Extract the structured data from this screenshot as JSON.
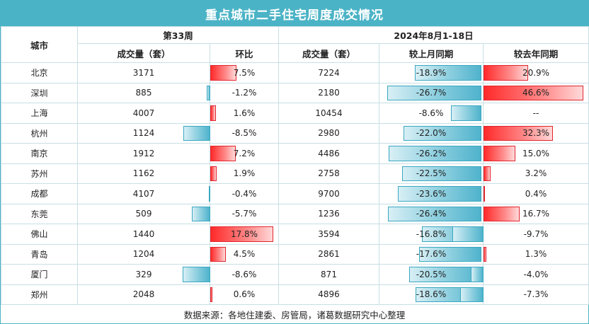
{
  "title": "重点城市二手住宅周度成交情况",
  "header": {
    "city": "城市",
    "week_group": "第33周",
    "period_group": "2024年8月1-18日",
    "volume": "成交量（套）",
    "wow": "环比",
    "period_volume": "成交量（套）",
    "mom": "较上月同期",
    "yoy": "较去年同期"
  },
  "rows": [
    {
      "city": "北京",
      "week_volume": "3171",
      "wow": "7.5%",
      "wow_v": 7.5,
      "period_volume": "7224",
      "mom": "-18.9%",
      "mom_v": -18.9,
      "yoy": "20.9%",
      "yoy_v": 20.9
    },
    {
      "city": "深圳",
      "week_volume": "885",
      "wow": "-1.2%",
      "wow_v": -1.2,
      "period_volume": "2180",
      "mom": "-26.7%",
      "mom_v": -26.7,
      "yoy": "46.6%",
      "yoy_v": 46.6
    },
    {
      "city": "上海",
      "week_volume": "4007",
      "wow": "1.6%",
      "wow_v": 1.6,
      "period_volume": "10454",
      "mom": "-8.6%",
      "mom_v": -8.6,
      "yoy": "--",
      "yoy_v": 0
    },
    {
      "city": "杭州",
      "week_volume": "1124",
      "wow": "-8.5%",
      "wow_v": -8.5,
      "period_volume": "2980",
      "mom": "-22.0%",
      "mom_v": -22.0,
      "yoy": "32.3%",
      "yoy_v": 32.3
    },
    {
      "city": "南京",
      "week_volume": "1912",
      "wow": "7.2%",
      "wow_v": 7.2,
      "period_volume": "4486",
      "mom": "-26.2%",
      "mom_v": -26.2,
      "yoy": "15.0%",
      "yoy_v": 15.0
    },
    {
      "city": "苏州",
      "week_volume": "1162",
      "wow": "1.9%",
      "wow_v": 1.9,
      "period_volume": "2758",
      "mom": "-22.5%",
      "mom_v": -22.5,
      "yoy": "3.2%",
      "yoy_v": 3.2
    },
    {
      "city": "成都",
      "week_volume": "4107",
      "wow": "-0.4%",
      "wow_v": -0.4,
      "period_volume": "9700",
      "mom": "-23.6%",
      "mom_v": -23.6,
      "yoy": "0.4%",
      "yoy_v": 0.4
    },
    {
      "city": "东莞",
      "week_volume": "509",
      "wow": "-5.7%",
      "wow_v": -5.7,
      "period_volume": "1236",
      "mom": "-26.4%",
      "mom_v": -26.4,
      "yoy": "16.7%",
      "yoy_v": 16.7
    },
    {
      "city": "佛山",
      "week_volume": "1440",
      "wow": "17.8%",
      "wow_v": 17.8,
      "period_volume": "3594",
      "mom": "-16.8%",
      "mom_v": -16.8,
      "yoy": "-9.7%",
      "yoy_v": -9.7
    },
    {
      "city": "青岛",
      "week_volume": "1204",
      "wow": "4.5%",
      "wow_v": 4.5,
      "period_volume": "2861",
      "mom": "-17.6%",
      "mom_v": -17.6,
      "yoy": "1.3%",
      "yoy_v": 1.3
    },
    {
      "city": "厦门",
      "week_volume": "329",
      "wow": "-8.6%",
      "wow_v": -8.6,
      "period_volume": "871",
      "mom": "-20.5%",
      "mom_v": -20.5,
      "yoy": "-4.0%",
      "yoy_v": -4.0
    },
    {
      "city": "郑州",
      "week_volume": "2048",
      "wow": "0.6%",
      "wow_v": 0.6,
      "period_volume": "4896",
      "mom": "-18.6%",
      "mom_v": -18.6,
      "yoy": "-7.3%",
      "yoy_v": -7.3
    }
  ],
  "footer": "数据来源：各地住建委、房管局，诸葛数据研究中心整理",
  "colors": {
    "header_bg": "#4bb3c6",
    "pos": "#ff2a2a",
    "neg": "#4fb3cc",
    "grid": "#c8dfe5"
  }
}
